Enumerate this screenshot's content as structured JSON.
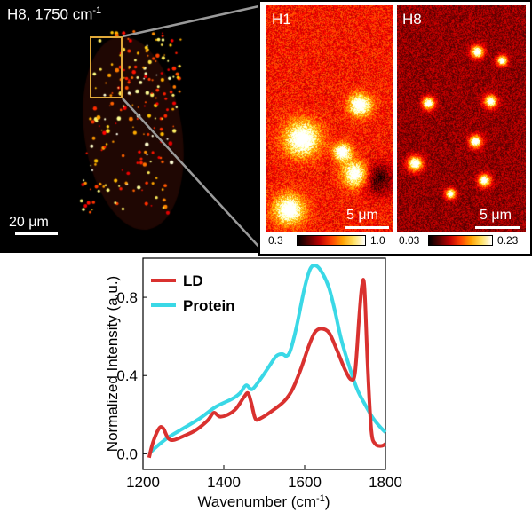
{
  "panels": {
    "left": {
      "label": "H8, 1750 cm",
      "label_sup": "-1",
      "scalebar": "20 μm"
    },
    "h1": {
      "label": "H1",
      "scalebar": "5 μm",
      "colorbar_min": "0.3",
      "colorbar_max": "1.0"
    },
    "h8": {
      "label": "H8",
      "scalebar": "5 μm",
      "colorbar_min": "0.03",
      "colorbar_max": "0.23"
    }
  },
  "colors": {
    "ld": "#d9312f",
    "protein": "#3ad8e6",
    "roi": "#e0a93a"
  },
  "chart_data": {
    "type": "line",
    "xlabel": "Wavenumber (cm",
    "xlabel_sup": "-1",
    "xlabel_end": ")",
    "ylabel": "Normalized Intensity (a.u.)",
    "xlim": [
      1200,
      1800
    ],
    "ylim": [
      -0.08,
      1.0
    ],
    "xticks": [
      1200,
      1400,
      1600,
      1800
    ],
    "yticks": [
      0.0,
      0.4,
      0.8
    ],
    "ytick_labels": [
      "0.0",
      "0.4",
      "0.8"
    ],
    "legend_position": "top-left",
    "series": [
      {
        "name": "LD",
        "color": "#d9312f",
        "x": [
          1215,
          1225,
          1240,
          1250,
          1262,
          1275,
          1300,
          1330,
          1360,
          1375,
          1390,
          1410,
          1430,
          1450,
          1460,
          1468,
          1478,
          1490,
          1520,
          1550,
          1570,
          1590,
          1610,
          1625,
          1640,
          1660,
          1680,
          1700,
          1715,
          1725,
          1735,
          1742,
          1748,
          1756,
          1765,
          1775,
          1790,
          1800
        ],
        "y": [
          -0.02,
          0.06,
          0.13,
          0.13,
          0.08,
          0.07,
          0.09,
          0.12,
          0.17,
          0.21,
          0.19,
          0.2,
          0.23,
          0.29,
          0.31,
          0.26,
          0.18,
          0.18,
          0.22,
          0.27,
          0.33,
          0.43,
          0.55,
          0.62,
          0.64,
          0.62,
          0.53,
          0.43,
          0.38,
          0.42,
          0.7,
          0.86,
          0.85,
          0.45,
          0.12,
          0.05,
          0.04,
          0.05
        ]
      },
      {
        "name": "Protein",
        "color": "#3ad8e6",
        "x": [
          1215,
          1230,
          1260,
          1300,
          1340,
          1380,
          1420,
          1440,
          1455,
          1470,
          1490,
          1510,
          1530,
          1545,
          1555,
          1565,
          1580,
          1600,
          1615,
          1630,
          1645,
          1660,
          1675,
          1690,
          1710,
          1730,
          1750,
          1770,
          1790,
          1800
        ],
        "y": [
          0.0,
          0.03,
          0.08,
          0.13,
          0.18,
          0.24,
          0.28,
          0.31,
          0.35,
          0.33,
          0.38,
          0.44,
          0.5,
          0.51,
          0.5,
          0.53,
          0.65,
          0.85,
          0.95,
          0.96,
          0.92,
          0.85,
          0.73,
          0.59,
          0.45,
          0.33,
          0.25,
          0.18,
          0.13,
          0.11
        ]
      }
    ]
  }
}
